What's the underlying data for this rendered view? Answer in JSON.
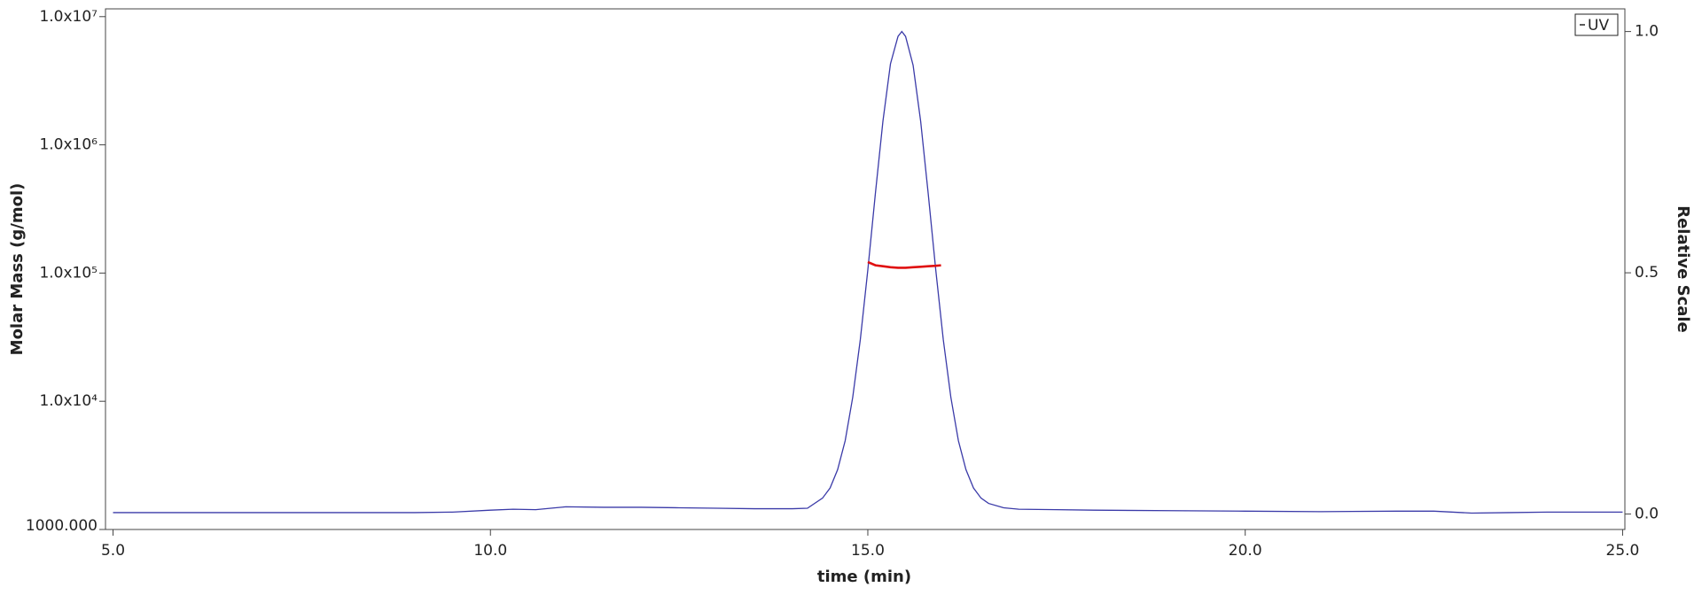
{
  "chart_data": {
    "type": "line",
    "xlabel": "time (min)",
    "ylabel": "Molar Mass (g/mol)",
    "y2label": "Relative Scale",
    "ylog": true,
    "legend": "top-right",
    "xlim": [
      4.9,
      25.03
    ],
    "xticks": [
      {
        "value": 5,
        "label": "5.0"
      },
      {
        "value": 10,
        "label": "10.0"
      },
      {
        "value": 15,
        "label": "15.0"
      },
      {
        "value": 20,
        "label": "20.0"
      },
      {
        "value": 25,
        "label": "25.0"
      }
    ],
    "ylim": [
      1000,
      11500000
    ],
    "yticks": [
      {
        "value": 1000,
        "label": "1000.000"
      },
      {
        "value": 10000,
        "label": "1.0x10⁴"
      },
      {
        "value": 100000,
        "label": "1.0x10⁵"
      },
      {
        "value": 1000000,
        "label": "1.0x10⁶"
      },
      {
        "value": 10000000,
        "label": "1.0x10⁷"
      }
    ],
    "y2lim": [
      -0.032,
      1.047
    ],
    "y2ticks": [
      {
        "value": 0,
        "label": "0.0"
      },
      {
        "value": 0.5,
        "label": "0.5"
      },
      {
        "value": 1,
        "label": "1.0"
      }
    ],
    "series": [
      {
        "name": "UV",
        "color": "#3a3aa8",
        "axis": "y2",
        "x": [
          5,
          6,
          7,
          8,
          9,
          9.5,
          10,
          10.3,
          10.6,
          10.8,
          11,
          11.5,
          12,
          12.5,
          13,
          13.5,
          14,
          14.2,
          14.4,
          14.5,
          14.6,
          14.7,
          14.8,
          14.9,
          15.0,
          15.1,
          15.2,
          15.3,
          15.4,
          15.45,
          15.5,
          15.6,
          15.7,
          15.8,
          15.9,
          16.0,
          16.1,
          16.2,
          16.3,
          16.4,
          16.5,
          16.6,
          16.8,
          17,
          17.5,
          18,
          19,
          20,
          21,
          22,
          22.5,
          23,
          23.5,
          24,
          25
        ],
        "values": [
          0.003,
          0.003,
          0.003,
          0.003,
          0.003,
          0.004,
          0.008,
          0.01,
          0.009,
          0.012,
          0.015,
          0.014,
          0.014,
          0.013,
          0.012,
          0.011,
          0.011,
          0.012,
          0.033,
          0.054,
          0.092,
          0.152,
          0.242,
          0.361,
          0.506,
          0.664,
          0.814,
          0.933,
          0.99,
          1.0,
          0.99,
          0.93,
          0.814,
          0.664,
          0.506,
          0.361,
          0.242,
          0.152,
          0.092,
          0.054,
          0.033,
          0.022,
          0.013,
          0.01,
          0.009,
          0.008,
          0.007,
          0.006,
          0.005,
          0.006,
          0.006,
          0.002,
          0.003,
          0.004,
          0.004
        ]
      },
      {
        "color": "#e01010",
        "axis": "y",
        "x": [
          15.0,
          15.1,
          15.2,
          15.3,
          15.4,
          15.5,
          15.6,
          15.7,
          15.8,
          15.9,
          15.97
        ],
        "values": [
          122000,
          115000,
          113000,
          111000,
          110000,
          110000,
          111000,
          112000,
          113000,
          114000,
          115000
        ]
      }
    ]
  }
}
